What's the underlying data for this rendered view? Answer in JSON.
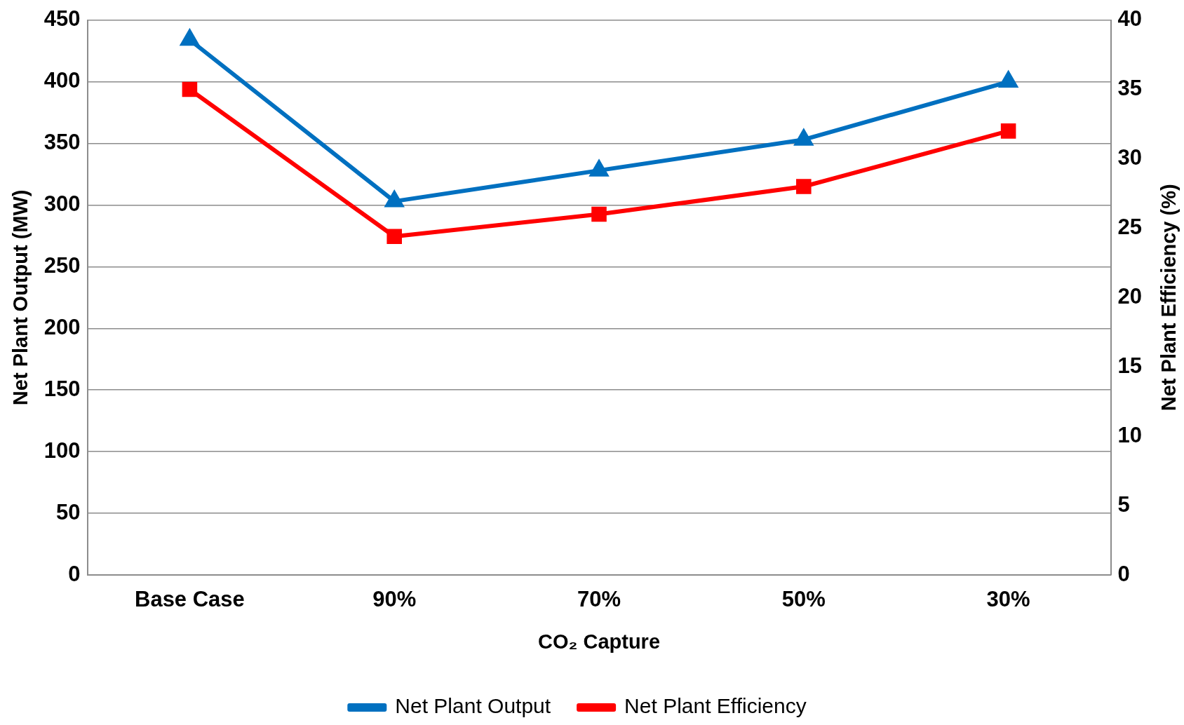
{
  "chart_data": {
    "type": "line",
    "xlabel": "CO₂ Capture",
    "ylabel": "Net Plant Output (MW)",
    "y2label": "Net Plant Efficiency (%)",
    "categories": [
      "Base Case",
      "90%",
      "70%",
      "50%",
      "30%"
    ],
    "series": [
      {
        "name": "Net Plant Output",
        "color": "#0070c0",
        "marker": "triangle",
        "values": [
          434,
          303,
          328,
          353,
          400
        ]
      },
      {
        "name": "Net Plant Efficiency",
        "color": "#ff0000",
        "marker": "square",
        "axis": "y2",
        "values": [
          35.0,
          24.4,
          26.0,
          28.0,
          32.0
        ]
      }
    ],
    "ylim": [
      0,
      450
    ],
    "yticks": [
      0,
      50,
      100,
      150,
      200,
      250,
      300,
      350,
      400,
      450
    ],
    "y2lim": [
      0,
      40
    ],
    "y2ticks": [
      0,
      5,
      10,
      15,
      20,
      25,
      30,
      35,
      40
    ],
    "grid": "y",
    "legend": "bottom",
    "line_style": "solid"
  }
}
